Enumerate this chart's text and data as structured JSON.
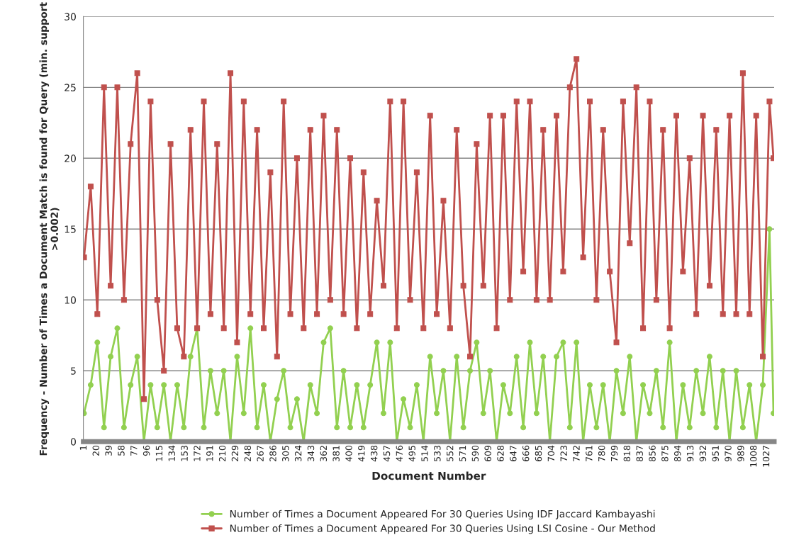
{
  "chart_data": {
    "type": "line",
    "xlabel": "Document Number",
    "ylabel": "Frequency - Number of Times a Document Match is found for Query (min. support >0.002)",
    "xlim": [
      0,
      1038
    ],
    "ylim": [
      0,
      30
    ],
    "xticks": [
      1,
      20,
      39,
      58,
      77,
      96,
      115,
      134,
      153,
      172,
      191,
      210,
      229,
      248,
      267,
      286,
      305,
      324,
      343,
      362,
      381,
      400,
      419,
      438,
      457,
      476,
      495,
      514,
      533,
      552,
      571,
      590,
      609,
      628,
      647,
      666,
      685,
      704,
      723,
      742,
      761,
      780,
      799,
      818,
      837,
      856,
      875,
      894,
      913,
      932,
      951,
      970,
      989,
      1008,
      1027
    ],
    "yticks": [
      0,
      5,
      10,
      15,
      20,
      25,
      30
    ],
    "grid": "y",
    "legend": "bottom",
    "series": [
      {
        "name": "Number of Times a Document Appeared For 30 Queries Using IDF Jaccard Kambayashi",
        "color": "#92d050",
        "marker": "circle",
        "x": [
          1,
          11,
          21,
          31,
          41,
          51,
          61,
          71,
          81,
          91,
          101,
          111,
          121,
          131,
          141,
          151,
          161,
          171,
          181,
          191,
          201,
          211,
          221,
          231,
          241,
          251,
          261,
          271,
          281,
          291,
          301,
          311,
          321,
          331,
          341,
          351,
          361,
          371,
          381,
          391,
          401,
          411,
          421,
          431,
          441,
          451,
          461,
          471,
          481,
          491,
          501,
          511,
          521,
          531,
          541,
          551,
          561,
          571,
          581,
          591,
          601,
          611,
          621,
          631,
          641,
          651,
          661,
          671,
          681,
          691,
          701,
          711,
          721,
          731,
          741,
          751,
          761,
          771,
          781,
          791,
          801,
          811,
          821,
          831,
          841,
          851,
          861,
          871,
          881,
          891,
          901,
          911,
          921,
          931,
          941,
          951,
          961,
          971,
          981,
          991,
          1001,
          1011,
          1021,
          1031,
          1037
        ],
        "values": [
          2,
          4,
          7,
          1,
          6,
          8,
          1,
          4,
          6,
          0,
          4,
          1,
          4,
          0,
          4,
          1,
          6,
          8,
          1,
          5,
          2,
          5,
          0,
          6,
          2,
          8,
          1,
          4,
          0,
          3,
          5,
          1,
          3,
          0,
          4,
          2,
          7,
          8,
          1,
          5,
          1,
          4,
          1,
          4,
          7,
          2,
          7,
          0,
          3,
          1,
          4,
          0,
          6,
          2,
          5,
          0,
          6,
          1,
          5,
          7,
          2,
          5,
          0,
          4,
          2,
          6,
          1,
          7,
          2,
          6,
          0,
          6,
          7,
          1,
          7,
          0,
          4,
          1,
          4,
          0,
          5,
          2,
          6,
          0,
          4,
          2,
          5,
          1,
          7,
          0,
          4,
          1,
          5,
          2,
          6,
          1,
          5,
          0,
          5,
          1,
          4,
          0,
          4,
          15,
          2
        ]
      },
      {
        "name": "Number of Times a Document Appeared For 30 Queries Using LSI Cosine - Our Method",
        "color": "#c0504d",
        "marker": "square",
        "x": [
          1,
          11,
          21,
          31,
          41,
          51,
          61,
          71,
          81,
          91,
          101,
          111,
          121,
          131,
          141,
          151,
          161,
          171,
          181,
          191,
          201,
          211,
          221,
          231,
          241,
          251,
          261,
          271,
          281,
          291,
          301,
          311,
          321,
          331,
          341,
          351,
          361,
          371,
          381,
          391,
          401,
          411,
          421,
          431,
          441,
          451,
          461,
          471,
          481,
          491,
          501,
          511,
          521,
          531,
          541,
          551,
          561,
          571,
          581,
          591,
          601,
          611,
          621,
          631,
          641,
          651,
          661,
          671,
          681,
          691,
          701,
          711,
          721,
          731,
          741,
          751,
          761,
          771,
          781,
          791,
          801,
          811,
          821,
          831,
          841,
          851,
          861,
          871,
          881,
          891,
          901,
          911,
          921,
          931,
          941,
          951,
          961,
          971,
          981,
          991,
          1001,
          1011,
          1021,
          1031,
          1037
        ],
        "values": [
          13,
          18,
          9,
          25,
          11,
          25,
          10,
          21,
          26,
          3,
          24,
          10,
          5,
          21,
          8,
          6,
          22,
          8,
          24,
          9,
          21,
          8,
          26,
          7,
          24,
          9,
          22,
          8,
          19,
          6,
          24,
          9,
          20,
          8,
          22,
          9,
          23,
          10,
          22,
          9,
          20,
          8,
          19,
          9,
          17,
          11,
          24,
          8,
          24,
          10,
          19,
          8,
          23,
          9,
          17,
          8,
          22,
          11,
          6,
          21,
          11,
          23,
          8,
          23,
          10,
          24,
          12,
          24,
          10,
          22,
          10,
          23,
          12,
          25,
          27,
          13,
          24,
          10,
          22,
          12,
          7,
          24,
          14,
          25,
          8,
          24,
          10,
          22,
          8,
          23,
          12,
          20,
          9,
          23,
          11,
          22,
          9,
          23,
          9,
          26,
          9,
          23,
          6,
          24,
          20
        ]
      }
    ]
  }
}
